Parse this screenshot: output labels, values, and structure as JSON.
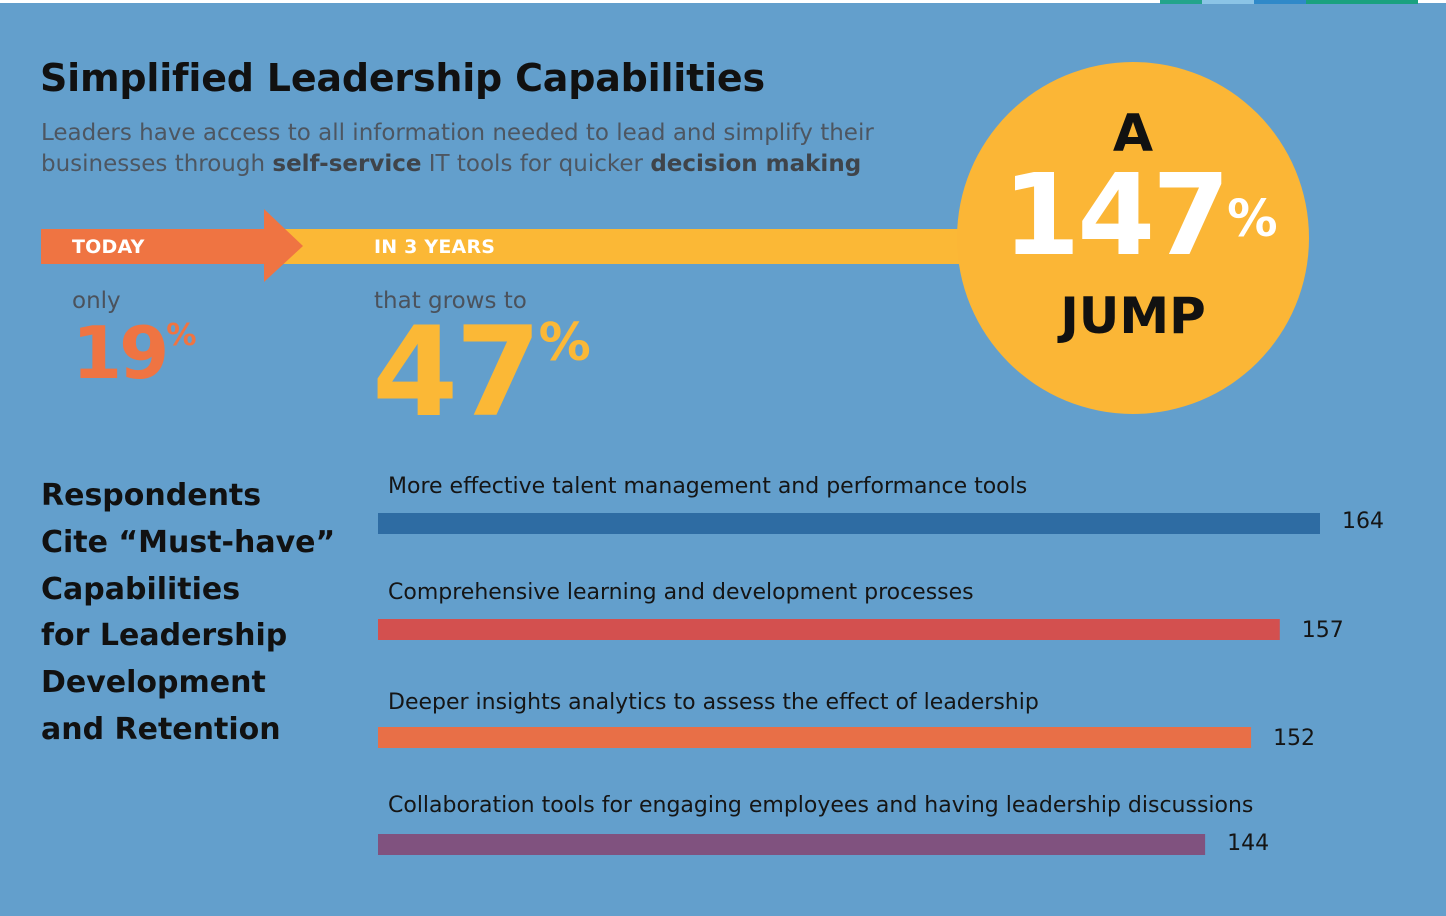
{
  "colors": {
    "background": "#639fcc",
    "today_orange": "#ef7442",
    "future_yellow": "#fbb836",
    "circle_yellow": "#fbb636",
    "dark_text": "#111111",
    "bar_blue": "#2e6ca3",
    "bar_red": "#d3504f",
    "bar_orange": "#e86f47",
    "bar_purple": "#80527f"
  },
  "header": {
    "title": "Simplified Leadership Capabilities",
    "subtitle_parts": [
      {
        "text": "Leaders have access to all information needed to lead and simplify their businesses through ",
        "bold": false
      },
      {
        "text": "self-service",
        "bold": true
      },
      {
        "text": " IT tools for quicker ",
        "bold": false
      },
      {
        "text": "decision making",
        "bold": true
      }
    ]
  },
  "timeline": {
    "today_label": "TODAY",
    "future_label": "IN 3 YEARS",
    "today_note": "only",
    "today_value": "19",
    "today_unit": "%",
    "future_note": "that grows to",
    "future_value": "47",
    "future_unit": "%"
  },
  "jump": {
    "prefix": "A",
    "value": "147",
    "unit": "%",
    "suffix": "JUMP"
  },
  "section": {
    "heading_lines": [
      "Respondents",
      "Cite “Must-have”",
      "Capabilities",
      "for Leadership",
      "Development",
      "and Retention"
    ]
  },
  "chart_data": {
    "type": "bar",
    "orientation": "horizontal",
    "categories": [
      "More effective talent management and performance tools",
      "Comprehensive learning and  development processes",
      "Deeper insights analytics to assess the effect of leadership",
      "Collaboration tools for engaging employees and having leadership discussions"
    ],
    "values": [
      164,
      157,
      152,
      144
    ],
    "data_labels": [
      "164",
      "157",
      "152",
      "144"
    ],
    "colors": [
      "#2e6ca3",
      "#d3504f",
      "#e86f47",
      "#80527f"
    ],
    "title": "",
    "xlabel": "",
    "ylabel": "",
    "xlim": [
      0,
      164
    ],
    "grid": false,
    "legend": "none"
  }
}
